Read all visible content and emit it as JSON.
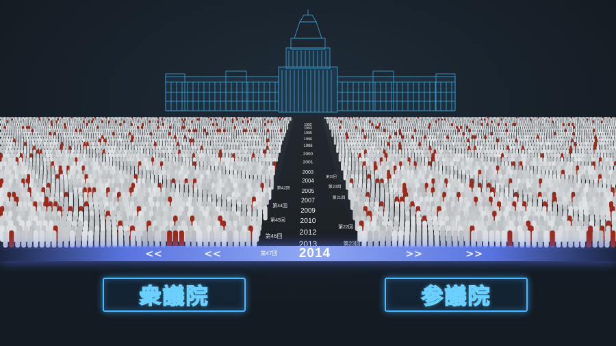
{
  "timeline": {
    "current_year": "2014",
    "current_session": "第47回",
    "left_chevrons": "<<",
    "right_chevrons": ">>"
  },
  "years": [
    "1992",
    "1993",
    "1995",
    "1996",
    "1998",
    "2000",
    "2001",
    "2003",
    "2004",
    "2005",
    "2007",
    "2009",
    "2010",
    "2012",
    "2013"
  ],
  "sessions": {
    "s42": "第42回",
    "s44": "第44回",
    "s45": "第45回",
    "s46": "第46回",
    "r19": "第19回",
    "r20": "第20回",
    "r21": "第21回",
    "r22": "第22回",
    "r23": "第23回"
  },
  "buttons": {
    "lower_house": "衆議院",
    "upper_house": "参議院"
  },
  "colors": {
    "background": "#141b22",
    "accent": "#49b8ff",
    "timeline": "#7f95ff",
    "member": "#cfd3d6",
    "member_highlight": "#9b2a1c"
  },
  "icons": [
    "diet-building-wireframe-icon",
    "member-figures-icon"
  ]
}
